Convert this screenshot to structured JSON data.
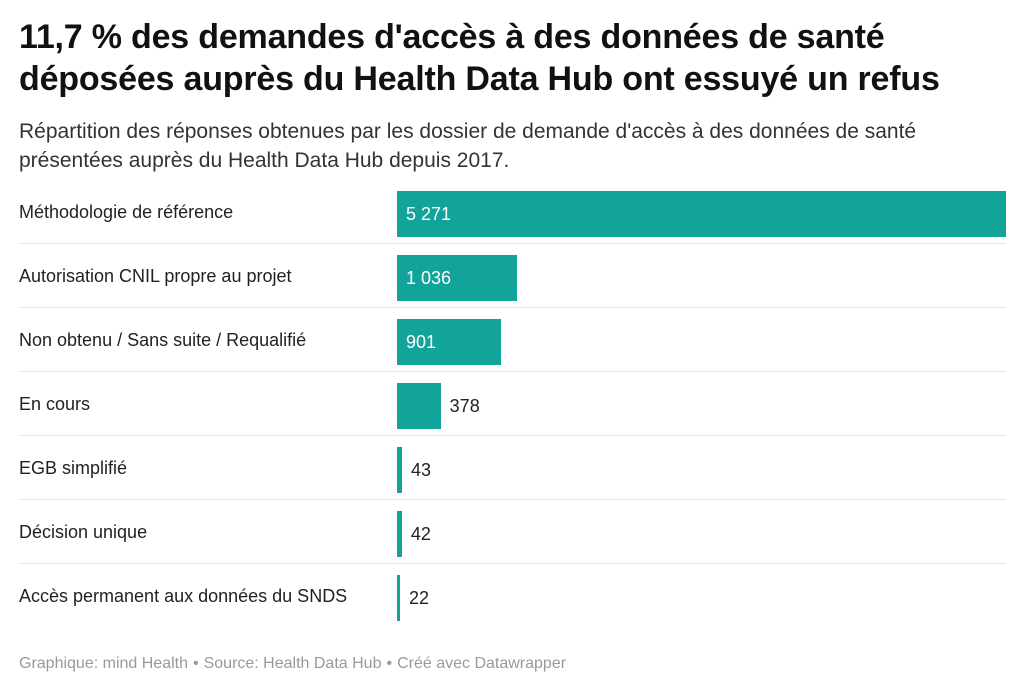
{
  "title": "11,7 % des demandes d'accès à des données de santé déposées auprès du Health Data Hub ont essuyé un refus",
  "subtitle": "Répartition des réponses obtenues par les dossier de demande d'accès à des données de santé présentées auprès du Health Data Hub depuis 2017.",
  "footer": {
    "graphic": "Graphique: mind Health",
    "source": "Source: Health Data Hub",
    "tool": "Créé avec Datawrapper",
    "separator": "•"
  },
  "colors": {
    "bar": "#12a39a",
    "divider": "#e6e6e6"
  },
  "chart_data": {
    "type": "bar",
    "orientation": "horizontal",
    "categories": [
      "Méthodologie de référence",
      "Autorisation CNIL propre au projet",
      "Non obtenu / Sans suite / Requalifié",
      "En cours",
      "EGB simplifié",
      "Décision unique",
      "Accès permanent aux données du SNDS"
    ],
    "values": [
      5271,
      1036,
      901,
      378,
      43,
      42,
      22
    ],
    "value_labels": [
      "5 271",
      "1 036",
      "901",
      "378",
      "43",
      "42",
      "22"
    ],
    "xlim": [
      0,
      5271
    ],
    "grid": false,
    "legend": "none"
  }
}
